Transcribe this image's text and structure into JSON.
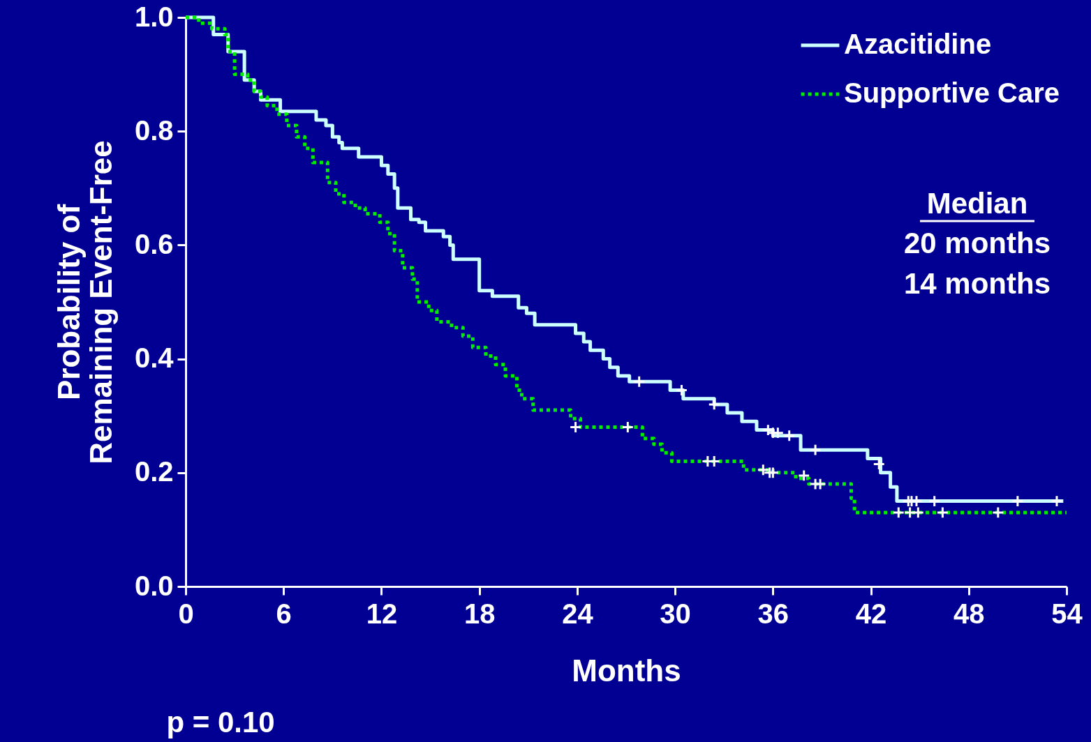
{
  "chart_data": {
    "type": "step",
    "xlabel": "Months",
    "ylabel": "Probability of\nRemaining Event-Free",
    "xlim": [
      0,
      54
    ],
    "xticks": [
      0,
      6,
      12,
      18,
      24,
      30,
      36,
      42,
      48,
      54
    ],
    "ylim": [
      0,
      1
    ],
    "yticks": [
      {
        "value": 0,
        "label": "0.0"
      },
      0.2,
      0.4,
      0.6,
      0.8,
      {
        "value": 1,
        "label": "1.0"
      }
    ],
    "grid": false,
    "legend": "top right",
    "annotations": [
      "Median",
      "20 months",
      "14 months",
      "p = 0.10"
    ],
    "series": [
      {
        "name": "Azacitidine",
        "color": "#ccffff",
        "line_style": "solid",
        "x": [
          0,
          1.7,
          2.6,
          3.6,
          4.2,
          4.6,
          5.8,
          8.0,
          8.6,
          9.0,
          9.4,
          9.6,
          10.6,
          12.0,
          12.4,
          12.8,
          13.0,
          13.8,
          14.3,
          14.7,
          15.8,
          16.2,
          16.4,
          18.0,
          18.8,
          20.4,
          20.9,
          21.4,
          23.9,
          24.4,
          24.8,
          25.6,
          26.0,
          26.5,
          27.2,
          29.7,
          30.5,
          32.4,
          33.2,
          34.1,
          35.0,
          36.0,
          37.7,
          41.8,
          42.6,
          43.2,
          43.6,
          53.8
        ],
        "values": [
          1.0,
          0.97,
          0.94,
          0.89,
          0.87,
          0.855,
          0.835,
          0.82,
          0.81,
          0.79,
          0.78,
          0.77,
          0.755,
          0.74,
          0.725,
          0.7,
          0.665,
          0.645,
          0.64,
          0.625,
          0.615,
          0.6,
          0.575,
          0.52,
          0.51,
          0.49,
          0.48,
          0.46,
          0.445,
          0.43,
          0.415,
          0.4,
          0.385,
          0.37,
          0.36,
          0.345,
          0.33,
          0.32,
          0.305,
          0.29,
          0.275,
          0.265,
          0.24,
          0.225,
          0.2,
          0.175,
          0.15,
          0.15
        ]
      },
      {
        "name": "Supportive Care",
        "color": "#00ee00",
        "line_style": "dotted",
        "x": [
          0,
          0.8,
          1.6,
          2.4,
          2.6,
          3.0,
          3.8,
          4.2,
          4.6,
          5.0,
          5.6,
          6.2,
          6.8,
          7.3,
          7.8,
          8.7,
          9.2,
          9.7,
          10.4,
          11.0,
          11.9,
          12.4,
          12.8,
          13.3,
          13.9,
          14.2,
          14.9,
          15.4,
          16.3,
          17.0,
          17.6,
          18.4,
          19.0,
          19.6,
          20.3,
          20.6,
          21.3,
          23.6,
          24.2,
          28.0,
          28.7,
          29.2,
          29.8,
          34.2,
          36.0,
          37.4,
          38.2,
          40.8,
          41.0,
          54.0
        ],
        "values": [
          1.0,
          0.99,
          0.98,
          0.97,
          0.94,
          0.9,
          0.89,
          0.87,
          0.86,
          0.845,
          0.83,
          0.81,
          0.79,
          0.77,
          0.745,
          0.71,
          0.69,
          0.675,
          0.665,
          0.655,
          0.64,
          0.62,
          0.59,
          0.56,
          0.54,
          0.5,
          0.485,
          0.465,
          0.455,
          0.44,
          0.42,
          0.405,
          0.39,
          0.37,
          0.345,
          0.33,
          0.31,
          0.295,
          0.28,
          0.26,
          0.25,
          0.235,
          0.22,
          0.205,
          0.2,
          0.19,
          0.18,
          0.155,
          0.13,
          0.13
        ]
      },
      {
        "type": "scatter",
        "color": "#ffffff",
        "marker": "cross",
        "x": [
          27.8,
          30.4,
          32.4,
          35.7,
          36.0,
          36.3,
          37.0,
          38.6,
          42.5,
          44.3,
          44.5,
          44.8,
          45.9,
          51.0,
          53.4,
          23.9,
          27.1,
          32.0,
          32.4,
          35.4,
          35.8,
          36.0,
          37.9,
          38.6,
          38.9,
          43.7,
          44.4,
          44.9,
          46.4,
          49.8
        ],
        "values": [
          0.36,
          0.345,
          0.32,
          0.275,
          0.27,
          0.27,
          0.265,
          0.24,
          0.215,
          0.15,
          0.15,
          0.15,
          0.15,
          0.15,
          0.15,
          0.28,
          0.28,
          0.22,
          0.22,
          0.205,
          0.2,
          0.2,
          0.195,
          0.18,
          0.18,
          0.13,
          0.13,
          0.13,
          0.13,
          0.13
        ]
      }
    ]
  }
}
